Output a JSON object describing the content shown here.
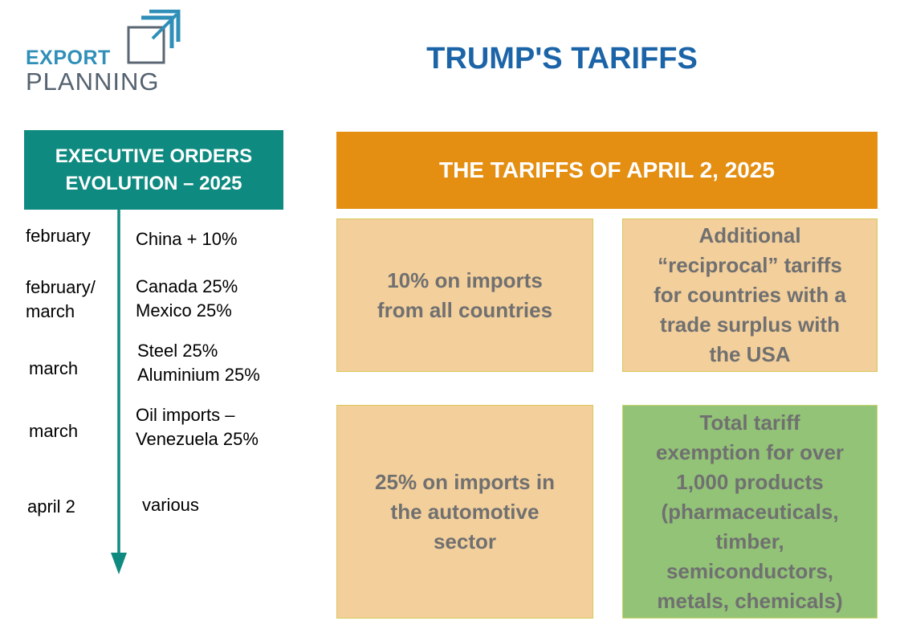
{
  "logo": {
    "word1": "EXPORT",
    "word2": "PLANNING"
  },
  "title": "TRUMP'S TARIFFS",
  "executive_orders": {
    "header_lines": [
      "EXECUTIVE ORDERS",
      "EVOLUTION – 2025"
    ],
    "timeline": [
      {
        "date_lines": [
          "february"
        ],
        "item_lines": [
          "China + 10%"
        ]
      },
      {
        "date_lines": [
          "february/",
          "march"
        ],
        "item_lines": [
          "Canada 25%",
          "Mexico 25%"
        ]
      },
      {
        "date_lines": [
          "march"
        ],
        "item_lines": [
          "Steel 25%",
          "Aluminium 25%"
        ]
      },
      {
        "date_lines": [
          "march"
        ],
        "item_lines": [
          "Oil imports –",
          "Venezuela 25%"
        ]
      },
      {
        "date_lines": [
          "april 2"
        ],
        "item_lines": [
          "various"
        ]
      }
    ]
  },
  "tariffs": {
    "banner": "THE TARIFFS OF APRIL 2, 2025",
    "boxes": [
      {
        "lines": [
          "10% on imports",
          "from all countries"
        ]
      },
      {
        "lines": [
          "Additional",
          "“reciprocal” tariffs",
          "for countries with a",
          "trade surplus with",
          "the USA"
        ]
      },
      {
        "lines": [
          "25% on imports in",
          "the automotive",
          "sector"
        ]
      },
      {
        "lines": [
          "Total tariff",
          "exemption for over",
          "1,000 products",
          "(pharmaceuticals,",
          "timber,",
          "semiconductors,",
          "metals, chemicals)"
        ]
      }
    ]
  },
  "colors": {
    "teal": "#0f8a80",
    "orange": "#e48f12",
    "light_orange": "#f3cf9b",
    "green": "#92c377",
    "title_blue": "#1c64a8"
  }
}
